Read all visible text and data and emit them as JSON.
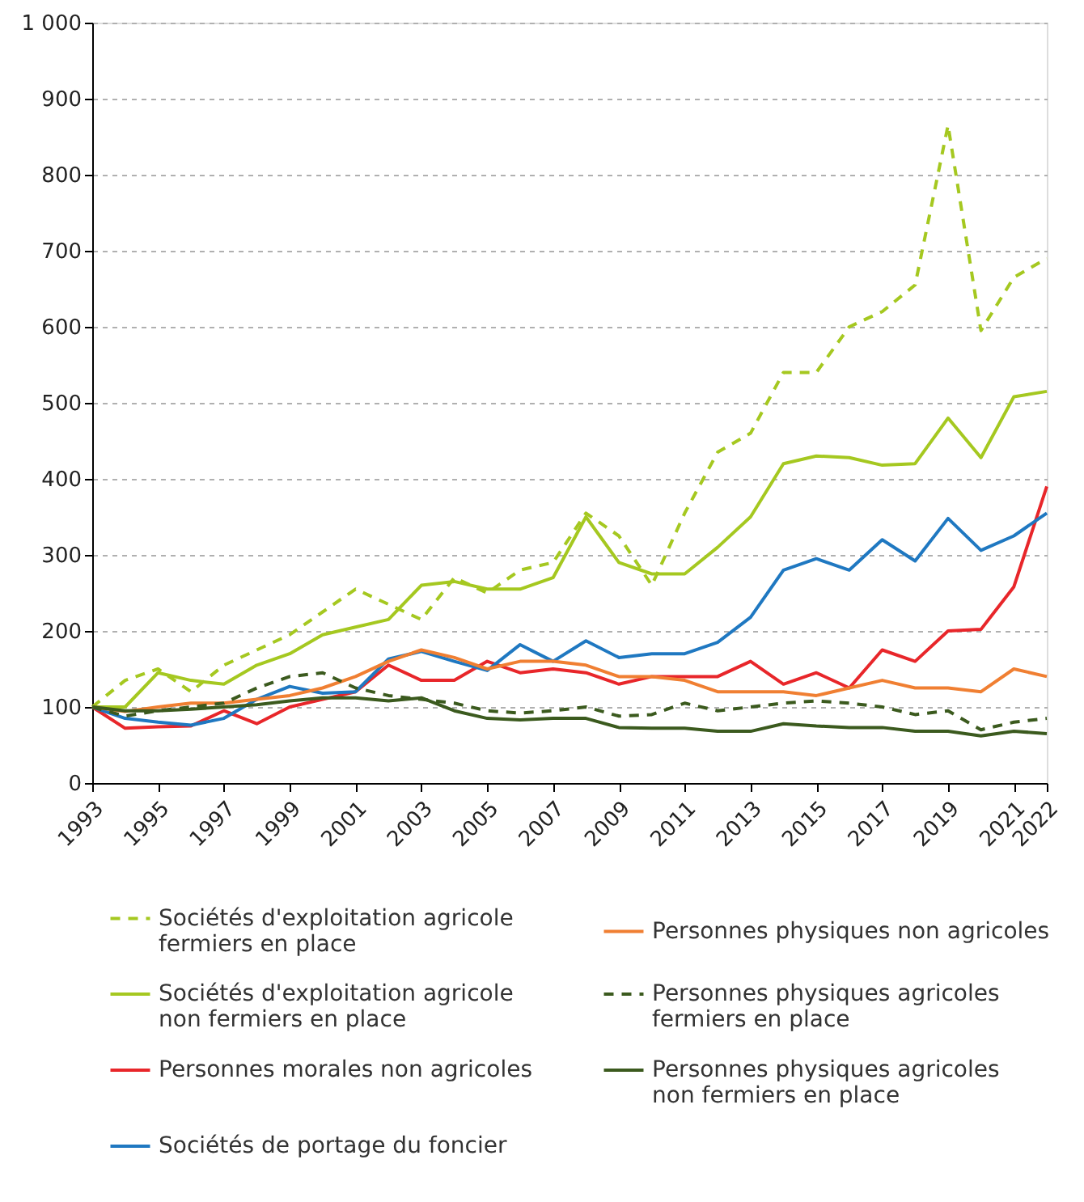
{
  "chart_data": {
    "type": "line",
    "x": [
      1993,
      1994,
      1995,
      1996,
      1997,
      1998,
      1999,
      2000,
      2001,
      2002,
      2003,
      2004,
      2005,
      2006,
      2007,
      2008,
      2009,
      2010,
      2011,
      2012,
      2013,
      2014,
      2015,
      2016,
      2017,
      2018,
      2019,
      2020,
      2021,
      2022
    ],
    "xlim": [
      1993,
      2022
    ],
    "xticks": [
      1993,
      1995,
      1997,
      1999,
      2001,
      2003,
      2005,
      2007,
      2009,
      2011,
      2013,
      2015,
      2017,
      2019,
      2021,
      2022
    ],
    "ylim": [
      0,
      1000
    ],
    "yticks": [
      0,
      100,
      200,
      300,
      400,
      500,
      600,
      700,
      800,
      900,
      {
        "value": 1000,
        "label": "1 000"
      }
    ],
    "grid": "y",
    "legend": "bottom",
    "marker": "none",
    "series": [
      {
        "name": "Sociétés d'exploitation agricole\nfermiers en place",
        "color": "#a5c820",
        "line_style": "dashed",
        "values": [
          100,
          135,
          150,
          120,
          155,
          175,
          195,
          225,
          255,
          235,
          215,
          270,
          250,
          280,
          290,
          355,
          325,
          260,
          355,
          435,
          460,
          540,
          540,
          600,
          620,
          655,
          865,
          595,
          665,
          690
        ]
      },
      {
        "name": "Sociétés d'exploitation agricole\nnon fermiers en place",
        "color": "#a5c820",
        "line_style": "solid",
        "values": [
          100,
          100,
          145,
          135,
          130,
          155,
          170,
          195,
          205,
          215,
          260,
          265,
          255,
          255,
          270,
          350,
          290,
          275,
          275,
          310,
          350,
          420,
          430,
          428,
          418,
          420,
          480,
          428,
          508,
          515
        ]
      },
      {
        "name": "Personnes morales non agricoles",
        "color": "#e8262a",
        "line_style": "solid",
        "values": [
          100,
          72,
          74,
          75,
          95,
          78,
          100,
          110,
          120,
          155,
          135,
          135,
          160,
          145,
          150,
          145,
          130,
          140,
          140,
          140,
          160,
          130,
          145,
          125,
          175,
          160,
          200,
          202,
          258,
          390
        ]
      },
      {
        "name": "Sociétés de portage du foncier",
        "color": "#1f78c1",
        "line_style": "solid",
        "values": [
          100,
          85,
          80,
          76,
          85,
          110,
          127,
          118,
          120,
          163,
          173,
          160,
          148,
          182,
          160,
          187,
          165,
          170,
          170,
          185,
          218,
          280,
          295,
          280,
          320,
          292,
          348,
          306,
          325,
          355
        ]
      },
      {
        "name": "Personnes physiques non agricoles",
        "color": "#f07f32",
        "line_style": "solid",
        "values": [
          100,
          94,
          100,
          105,
          105,
          110,
          115,
          125,
          140,
          160,
          175,
          165,
          150,
          160,
          160,
          155,
          140,
          140,
          135,
          120,
          120,
          120,
          115,
          125,
          135,
          125,
          125,
          120,
          150,
          140
        ]
      },
      {
        "name": "Personnes physiques agricoles\nfermiers en place",
        "color": "#3b5a1e",
        "line_style": "dashed",
        "values": [
          100,
          88,
          95,
          100,
          105,
          125,
          140,
          145,
          125,
          115,
          110,
          105,
          95,
          92,
          95,
          100,
          88,
          90,
          105,
          95,
          100,
          105,
          108,
          105,
          100,
          90,
          95,
          70,
          80,
          85
        ]
      },
      {
        "name": "Personnes physiques agricoles\nnon fermiers en place",
        "color": "#3b5a1e",
        "line_style": "solid",
        "values": [
          100,
          95,
          95,
          97,
          100,
          103,
          108,
          112,
          112,
          108,
          112,
          95,
          85,
          83,
          85,
          85,
          73,
          72,
          72,
          68,
          68,
          78,
          75,
          73,
          73,
          68,
          68,
          62,
          68,
          65
        ]
      }
    ]
  }
}
